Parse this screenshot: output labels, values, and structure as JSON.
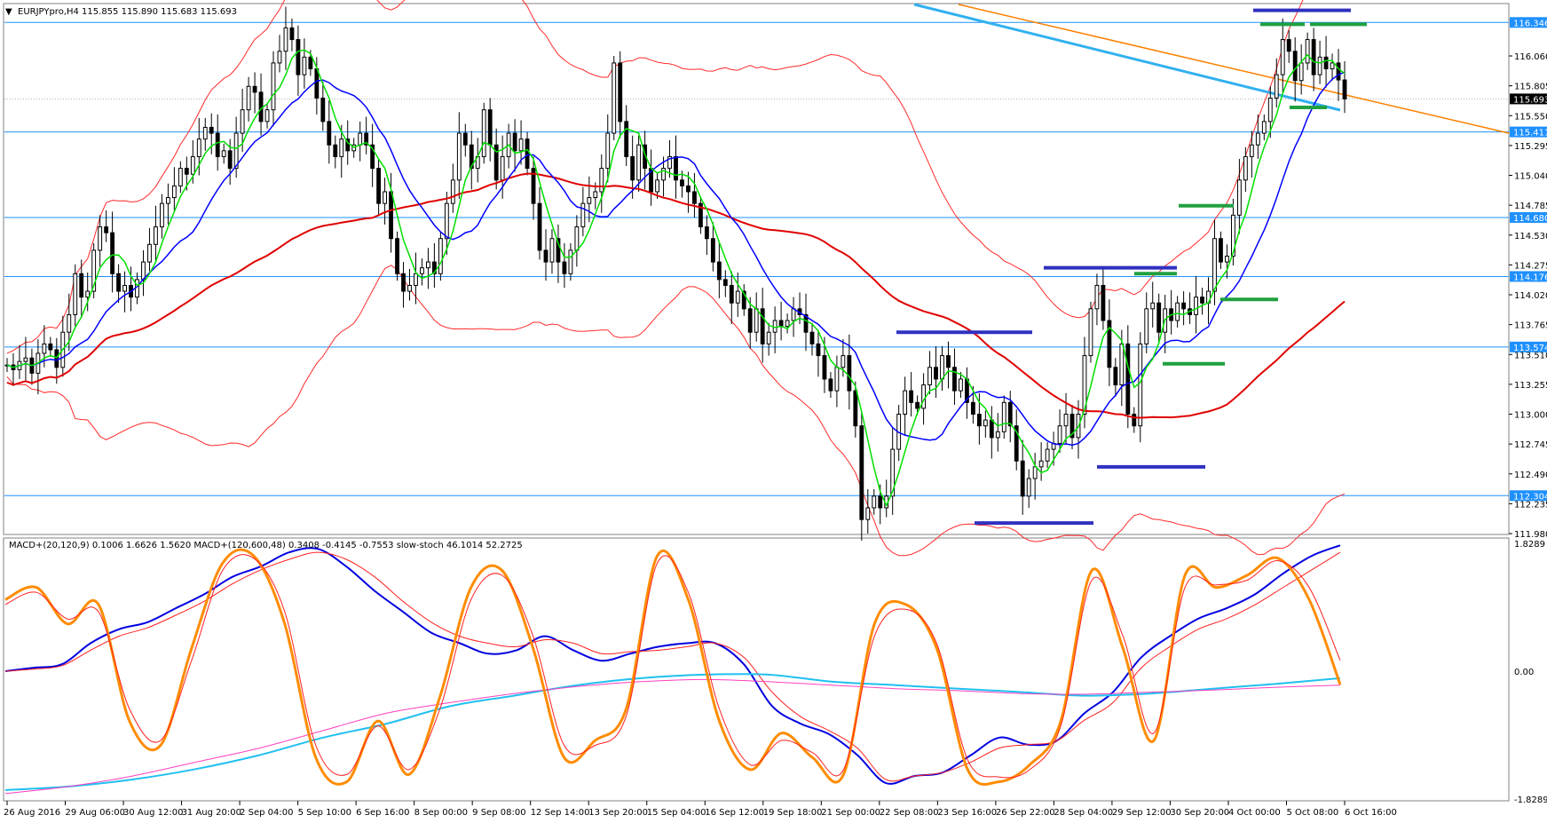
{
  "header": {
    "symbol_line": "EURJPYpro,H4  115.855 115.890 115.683 115.693"
  },
  "sub_header": {
    "indicator_line": "MACD+(20,120,9) 0.1006 1.6626 1.5620   MACD+(120,600,48) 0.3408 -0.4145 -0.7553   slow-stoch 46.1014 52.2725"
  },
  "colors": {
    "candle": "#000000",
    "hline": "#1e90ff",
    "bb_upper_lower": "#ff2a2a",
    "ma_red_thick": "#e00000",
    "ma_green": "#00e000",
    "ma_blue": "#0000ff",
    "trend_orange": "#ff8000",
    "trend_cyan": "#30b0f0",
    "seg_blue": "#3030c0",
    "seg_green": "#20a040",
    "macd_fast": "#0000e0",
    "macd_slow_signal": "#ff2020",
    "macd_long": "#20c0f0",
    "macd_long_signal": "#ff40c0",
    "stoch_main": "#ff8c00",
    "stoch_signal": "#ff2020"
  },
  "chart_data": [
    {
      "type": "candlestick",
      "title": "EURJPYpro,H4",
      "ylim": [
        111.98,
        116.5
      ],
      "yticks": [
        116.06,
        115.805,
        115.55,
        115.295,
        115.04,
        114.785,
        114.53,
        114.275,
        114.02,
        113.765,
        113.51,
        113.255,
        113.0,
        112.745,
        112.49,
        112.235,
        111.98
      ],
      "hlines": [
        116.346,
        115.411,
        114.68,
        114.176,
        113.574,
        112.304
      ],
      "current_price": 115.693,
      "x_labels": [
        "26 Aug 2016",
        "29 Aug 06:00",
        "30 Aug 12:00",
        "31 Aug 20:00",
        "2 Sep 04:00",
        "5 Sep 10:00",
        "6 Sep 16:00",
        "8 Sep 00:00",
        "9 Sep 08:00",
        "12 Sep 14:00",
        "13 Sep 20:00",
        "15 Sep 04:00",
        "16 Sep 12:00",
        "19 Sep 18:00",
        "21 Sep 00:00",
        "22 Sep 08:00",
        "23 Sep 16:00",
        "26 Sep 22:00",
        "28 Sep 04:00",
        "29 Sep 12:00",
        "30 Sep 20:00",
        "4 Oct 00:00",
        "5 Oct 08:00",
        "6 Oct 16:00"
      ],
      "series": {
        "close": [
          113.42,
          113.38,
          113.45,
          113.48,
          113.35,
          113.52,
          113.6,
          113.55,
          113.4,
          113.7,
          113.85,
          114.2,
          114.0,
          114.05,
          114.4,
          114.6,
          114.55,
          114.2,
          114.05,
          114.1,
          114.0,
          114.15,
          114.3,
          114.45,
          114.6,
          114.8,
          114.85,
          114.95,
          115.1,
          115.05,
          115.2,
          115.35,
          115.45,
          115.4,
          115.2,
          115.25,
          115.1,
          115.4,
          115.6,
          115.8,
          115.75,
          115.5,
          115.6,
          116.0,
          116.1,
          116.3,
          116.2,
          115.9,
          116.05,
          115.95,
          115.7,
          115.5,
          115.3,
          115.2,
          115.35,
          115.25,
          115.3,
          115.4,
          115.3,
          115.1,
          114.8,
          114.9,
          114.5,
          114.2,
          114.05,
          114.1,
          114.2,
          114.25,
          114.3,
          114.2,
          114.5,
          114.8,
          115.0,
          115.4,
          115.3,
          115.1,
          115.2,
          115.6,
          115.3,
          115.0,
          115.2,
          115.4,
          115.25,
          115.35,
          115.1,
          114.8,
          114.4,
          114.3,
          114.5,
          114.3,
          114.2,
          114.4,
          114.6,
          114.8,
          114.85,
          114.9,
          115.1,
          115.4,
          116.0,
          115.5,
          115.2,
          115.0,
          115.3,
          115.1,
          114.9,
          115.0,
          115.1,
          115.2,
          115.0,
          114.95,
          114.9,
          114.8,
          114.6,
          114.5,
          114.3,
          114.15,
          114.1,
          113.95,
          114.05,
          113.9,
          113.7,
          113.9,
          113.6,
          113.7,
          113.8,
          113.75,
          113.8,
          113.9,
          113.85,
          113.7,
          113.6,
          113.5,
          113.3,
          113.2,
          113.4,
          113.5,
          113.2,
          112.9,
          112.1,
          112.2,
          112.3,
          112.2,
          112.3,
          112.7,
          113.0,
          113.2,
          113.1,
          113.05,
          113.25,
          113.4,
          113.3,
          113.5,
          113.4,
          113.2,
          113.3,
          113.1,
          113.0,
          112.9,
          112.95,
          112.8,
          112.85,
          113.1,
          112.9,
          112.6,
          112.3,
          112.45,
          112.55,
          112.6,
          112.7,
          112.75,
          112.9,
          113.0,
          112.8,
          113.0,
          113.5,
          113.9,
          114.1,
          113.8,
          113.4,
          113.25,
          113.6,
          113.0,
          112.9,
          113.6,
          113.9,
          113.95,
          113.7,
          113.9,
          113.8,
          113.95,
          113.9,
          113.85,
          114.0,
          113.95,
          114.05,
          114.5,
          114.3,
          114.35,
          114.7,
          115.0,
          115.2,
          115.3,
          115.4,
          115.5,
          115.7,
          115.9,
          116.2,
          116.1,
          115.85,
          116.0,
          116.2,
          115.9,
          116.05,
          115.95,
          116.0,
          115.855,
          115.693
        ],
        "open_close_offset_note": ""
      }
    },
    {
      "type": "line",
      "title": "",
      "ylim": [
        -1.8289,
        1.8289
      ],
      "yticks_labels": [
        "1.8289",
        "0.00",
        "-1.8289"
      ],
      "series": [
        {
          "name": "",
          "role": "macd_fast",
          "values": [
            0.0,
            0.05,
            0.1,
            0.4,
            0.6,
            0.7,
            0.9,
            1.1,
            1.35,
            1.5,
            1.7,
            1.75,
            1.5,
            1.15,
            0.85,
            0.55,
            0.4,
            0.25,
            0.3,
            0.5,
            0.3,
            0.15,
            0.25,
            0.35,
            0.4,
            0.4,
            0.1,
            -0.5,
            -0.75,
            -0.9,
            -1.2,
            -1.6,
            -1.5,
            -1.45,
            -1.2,
            -0.95,
            -1.05,
            -1.0,
            -0.6,
            -0.3,
            0.2,
            0.5,
            0.75,
            0.9,
            1.1,
            1.4,
            1.65,
            1.8
          ]
        },
        {
          "name": "",
          "role": "macd_fast_signal",
          "values": [
            0.0,
            0.03,
            0.08,
            0.3,
            0.5,
            0.62,
            0.8,
            1.0,
            1.25,
            1.45,
            1.6,
            1.7,
            1.6,
            1.35,
            1.0,
            0.7,
            0.5,
            0.4,
            0.35,
            0.45,
            0.4,
            0.25,
            0.28,
            0.3,
            0.35,
            0.4,
            0.2,
            -0.3,
            -0.65,
            -0.85,
            -1.1,
            -1.55,
            -1.5,
            -1.45,
            -1.3,
            -1.1,
            -1.05,
            -1.0,
            -0.7,
            -0.45,
            0.05,
            0.35,
            0.6,
            0.75,
            0.95,
            1.2,
            1.45,
            1.7
          ]
        },
        {
          "name": "",
          "role": "macd_long",
          "values": [
            -1.7,
            -1.65,
            -1.55,
            -1.4,
            -1.2,
            -0.95,
            -0.75,
            -0.5,
            -0.35,
            -0.2,
            -0.1,
            -0.05,
            -0.05,
            -0.15,
            -0.2,
            -0.25,
            -0.3,
            -0.35,
            -0.32,
            -0.25,
            -0.18,
            -0.1
          ]
        },
        {
          "name": "",
          "role": "macd_long_signal",
          "values": [
            -1.75,
            -1.65,
            -1.5,
            -1.3,
            -1.1,
            -0.85,
            -0.6,
            -0.45,
            -0.32,
            -0.22,
            -0.15,
            -0.12,
            -0.15,
            -0.2,
            -0.25,
            -0.28,
            -0.32,
            -0.33,
            -0.3,
            -0.27,
            -0.23,
            -0.2
          ]
        },
        {
          "name": "",
          "role": "stoch_main",
          "values": [
            80,
            85,
            70,
            78,
            30,
            20,
            60,
            95,
            98,
            70,
            15,
            5,
            30,
            8,
            40,
            85,
            92,
            60,
            15,
            22,
            35,
            98,
            80,
            30,
            10,
            25,
            15,
            8,
            70,
            78,
            60,
            10,
            5,
            12,
            30,
            92,
            60,
            22,
            90,
            85,
            90,
            97,
            80,
            45
          ]
        },
        {
          "name": "",
          "role": "stoch_signal",
          "values": [
            78,
            83,
            72,
            75,
            35,
            22,
            55,
            92,
            97,
            75,
            20,
            8,
            28,
            10,
            35,
            80,
            90,
            65,
            20,
            20,
            32,
            95,
            83,
            35,
            12,
            22,
            17,
            10,
            65,
            76,
            62,
            14,
            7,
            10,
            28,
            88,
            65,
            25,
            85,
            86,
            88,
            96,
            85,
            55
          ]
        }
      ]
    }
  ]
}
